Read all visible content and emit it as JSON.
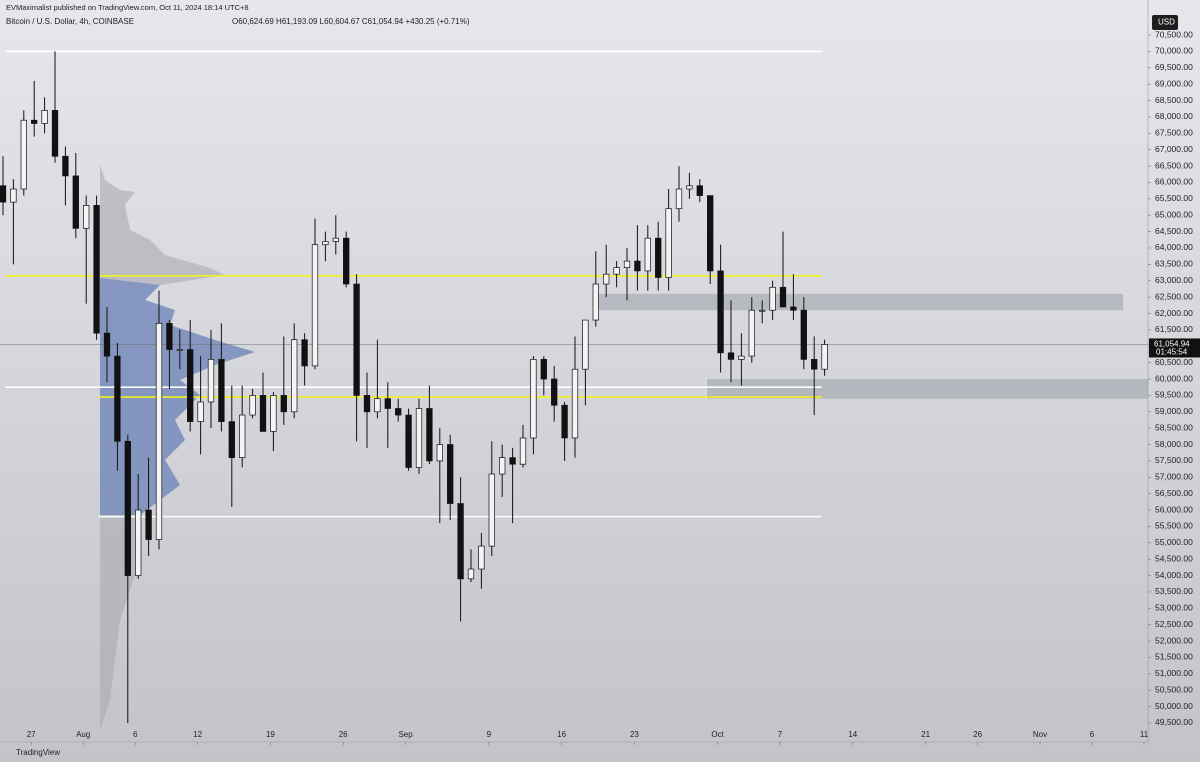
{
  "header": {
    "publisher": "EVMaximalist published on TradingView.com, Oct 11, 2024 18:14 UTC+8",
    "brand": "TradingView"
  },
  "chart_data": {
    "type": "candlestick",
    "title": "Bitcoin / U.S. Dollar, 4h, COINBASE",
    "ohlc_legend": "O60,624.69 H61,193.09 L60,604.67 C61,054.94 +430.25 (+0.71%)",
    "currency": "USD",
    "x": [
      "Jul 24",
      "Jul 25",
      "Jul 26",
      "Jul 27",
      "Jul 28",
      "Jul 29",
      "Jul 30",
      "Jul 31",
      "Aug 1",
      "Aug 2",
      "Aug 3",
      "Aug 4",
      "Aug 5",
      "Aug 6",
      "Aug 7",
      "Aug 8",
      "Aug 9",
      "Aug 10",
      "Aug 11",
      "Aug 12",
      "Aug 13",
      "Aug 14",
      "Aug 15",
      "Aug 16",
      "Aug 17",
      "Aug 18",
      "Aug 19",
      "Aug 20",
      "Aug 21",
      "Aug 22",
      "Aug 23",
      "Aug 24",
      "Aug 25",
      "Aug 26",
      "Aug 27",
      "Aug 28",
      "Aug 29",
      "Aug 30",
      "Aug 31",
      "Sep 1",
      "Sep 2",
      "Sep 3",
      "Sep 4",
      "Sep 5",
      "Sep 6",
      "Sep 7",
      "Sep 8",
      "Sep 9",
      "Sep 10",
      "Sep 11",
      "Sep 12",
      "Sep 13",
      "Sep 14",
      "Sep 15",
      "Sep 16",
      "Sep 17",
      "Sep 18",
      "Sep 19",
      "Sep 20",
      "Sep 21",
      "Sep 22",
      "Sep 23",
      "Sep 24",
      "Sep 25",
      "Sep 26",
      "Sep 27",
      "Sep 28",
      "Sep 29",
      "Sep 30",
      "Oct 1",
      "Oct 2",
      "Oct 3",
      "Oct 4",
      "Oct 5",
      "Oct 6",
      "Oct 7",
      "Oct 8",
      "Oct 9",
      "Oct 10",
      "Oct 11"
    ],
    "open": [
      65900,
      65400,
      65800,
      67900,
      67800,
      68200,
      66800,
      66200,
      64600,
      65300,
      61400,
      60700,
      58100,
      54000,
      56000,
      55100,
      61700,
      60900,
      60900,
      58700,
      59300,
      60600,
      58700,
      57600,
      58900,
      59500,
      58400,
      59500,
      59000,
      61200,
      60400,
      64100,
      64200,
      64300,
      62900,
      59500,
      59000,
      59400,
      59100,
      58900,
      57300,
      59100,
      57500,
      58000,
      56200,
      53900,
      54200,
      54900,
      57100,
      57600,
      57400,
      58200,
      60600,
      60000,
      59200,
      58200,
      60300,
      61800,
      62900,
      63200,
      63400,
      63600,
      63300,
      64300,
      63100,
      65200,
      65800,
      65900,
      65600,
      63300,
      60800,
      60600,
      60700,
      62100,
      62100,
      62800,
      62200,
      62100,
      60600,
      60300
    ],
    "high": [
      66800,
      66100,
      68200,
      69100,
      68600,
      70000,
      67100,
      66900,
      65600,
      65600,
      62200,
      61100,
      58300,
      57100,
      57600,
      62700,
      61800,
      61500,
      61800,
      60700,
      61500,
      61700,
      59800,
      59800,
      59700,
      60200,
      59600,
      61300,
      61700,
      61400,
      64900,
      64500,
      65000,
      64500,
      63200,
      60200,
      61200,
      59900,
      59400,
      59100,
      59400,
      59800,
      58500,
      58300,
      57000,
      54800,
      55300,
      58100,
      58000,
      57900,
      58600,
      60700,
      60700,
      60400,
      59300,
      61300,
      61800,
      63900,
      64100,
      63600,
      64000,
      64700,
      64700,
      64800,
      65800,
      66500,
      66300,
      66100,
      65600,
      64100,
      62400,
      61400,
      62500,
      62400,
      63000,
      64500,
      63200,
      62500,
      61300,
      61200
    ],
    "low": [
      65000,
      63500,
      65600,
      67400,
      67500,
      66600,
      65300,
      64300,
      62300,
      61200,
      59900,
      57200,
      49500,
      53900,
      54600,
      54800,
      59700,
      60300,
      58400,
      57700,
      58500,
      58400,
      56100,
      57300,
      58800,
      58400,
      57800,
      58600,
      58800,
      59800,
      60300,
      63600,
      63800,
      62800,
      58100,
      57900,
      58800,
      57900,
      58700,
      57200,
      57100,
      57400,
      55600,
      55700,
      52600,
      53800,
      53600,
      54600,
      56400,
      55600,
      57300,
      57700,
      59500,
      58700,
      57500,
      57600,
      59200,
      61600,
      62500,
      62800,
      62400,
      62700,
      62700,
      62700,
      62700,
      64800,
      65500,
      65400,
      62900,
      60200,
      59900,
      59800,
      60500,
      61700,
      61800,
      62200,
      61800,
      60300,
      58900,
      60100
    ],
    "close": [
      65400,
      65800,
      67900,
      67800,
      68200,
      66800,
      66200,
      64600,
      65300,
      61400,
      60700,
      58100,
      54000,
      56000,
      55100,
      61700,
      60900,
      60900,
      58700,
      59300,
      60600,
      58700,
      57600,
      58900,
      59500,
      58400,
      59500,
      59000,
      61200,
      60400,
      64100,
      64200,
      64300,
      62900,
      59500,
      59000,
      59400,
      59100,
      58900,
      57300,
      59100,
      57500,
      58000,
      56200,
      53900,
      54200,
      54900,
      57100,
      57600,
      57400,
      58200,
      60600,
      60000,
      59200,
      58200,
      60300,
      61800,
      62900,
      63200,
      63400,
      63600,
      63300,
      64300,
      63100,
      65200,
      65800,
      65900,
      65600,
      63300,
      60800,
      60600,
      60700,
      62100,
      62100,
      62800,
      62200,
      62100,
      60600,
      60300,
      61054.94
    ],
    "xlim": [
      "Jul 24",
      "Nov 11"
    ],
    "xticks": [
      {
        "value": "Jul 27",
        "label": "27"
      },
      {
        "value": "Aug 1",
        "label": "Aug"
      },
      {
        "value": "Aug 6",
        "label": "6"
      },
      {
        "value": "Aug 12",
        "label": "12"
      },
      {
        "value": "Aug 19",
        "label": "19"
      },
      {
        "value": "Aug 26",
        "label": "26"
      },
      {
        "value": "Sep 1",
        "label": "Sep"
      },
      {
        "value": "Sep 9",
        "label": "9"
      },
      {
        "value": "Sep 16",
        "label": "16"
      },
      {
        "value": "Sep 23",
        "label": "23"
      },
      {
        "value": "Oct 1",
        "label": "Oct"
      },
      {
        "value": "Oct 7",
        "label": "7"
      },
      {
        "value": "Oct 14",
        "label": "14"
      },
      {
        "value": "Oct 21",
        "label": "21"
      },
      {
        "value": "Oct 26",
        "label": "26"
      },
      {
        "value": "Nov 1",
        "label": "Nov"
      },
      {
        "value": "Nov 6",
        "label": "6"
      },
      {
        "value": "Nov 11",
        "label": "11"
      }
    ],
    "ylim": [
      48920,
      71570
    ],
    "yticks": [
      {
        "value": 49500,
        "label": "49,500.00"
      },
      {
        "value": 50000,
        "label": "50,000.00"
      },
      {
        "value": 50500,
        "label": "50,500.00"
      },
      {
        "value": 51000,
        "label": "51,000.00"
      },
      {
        "value": 51500,
        "label": "51,500.00"
      },
      {
        "value": 52000,
        "label": "52,000.00"
      },
      {
        "value": 52500,
        "label": "52,500.00"
      },
      {
        "value": 53000,
        "label": "53,000.00"
      },
      {
        "value": 53500,
        "label": "53,500.00"
      },
      {
        "value": 54000,
        "label": "54,000.00"
      },
      {
        "value": 54500,
        "label": "54,500.00"
      },
      {
        "value": 55000,
        "label": "55,000.00"
      },
      {
        "value": 55500,
        "label": "55,500.00"
      },
      {
        "value": 56000,
        "label": "56,000.00"
      },
      {
        "value": 56500,
        "label": "56,500.00"
      },
      {
        "value": 57000,
        "label": "57,000.00"
      },
      {
        "value": 57500,
        "label": "57,500.00"
      },
      {
        "value": 58000,
        "label": "58,000.00"
      },
      {
        "value": 58500,
        "label": "58,500.00"
      },
      {
        "value": 59000,
        "label": "59,000.00"
      },
      {
        "value": 59500,
        "label": "59,500.00"
      },
      {
        "value": 60000,
        "label": "60,000.00"
      },
      {
        "value": 60500,
        "label": "60,500.00"
      },
      {
        "value": 61000,
        "label": "61,000.00"
      },
      {
        "value": 61500,
        "label": "61,500.00"
      },
      {
        "value": 62000,
        "label": "62,000.00"
      },
      {
        "value": 62500,
        "label": "62,500.00"
      },
      {
        "value": 63000,
        "label": "63,000.00"
      },
      {
        "value": 63500,
        "label": "63,500.00"
      },
      {
        "value": 64000,
        "label": "64,000.00"
      },
      {
        "value": 64500,
        "label": "64,500.00"
      },
      {
        "value": 65000,
        "label": "65,000.00"
      },
      {
        "value": 65500,
        "label": "65,500.00"
      },
      {
        "value": 66000,
        "label": "66,000.00"
      },
      {
        "value": 66500,
        "label": "66,500.00"
      },
      {
        "value": 67000,
        "label": "67,000.00"
      },
      {
        "value": 67500,
        "label": "67,500.00"
      },
      {
        "value": 68000,
        "label": "68,000.00"
      },
      {
        "value": 68500,
        "label": "68,500.00"
      },
      {
        "value": 69000,
        "label": "69,000.00"
      },
      {
        "value": 69500,
        "label": "69,500.00"
      },
      {
        "value": 70000,
        "label": "70,000.00"
      },
      {
        "value": 70500,
        "label": "70,500.00"
      }
    ],
    "levels": [
      {
        "value": 70000,
        "color": "#ffffff",
        "from": "Jul 24",
        "to": "Oct 11"
      },
      {
        "value": 63150,
        "color": "#f2f21a",
        "from": "Jul 24",
        "to": "Oct 11"
      },
      {
        "value": 59750,
        "color": "#ffffff",
        "from": "Jul 24",
        "to": "Oct 11"
      },
      {
        "value": 59450,
        "color": "#f2f21a",
        "from": "Aug 2",
        "to": "Oct 11"
      },
      {
        "value": 55800,
        "color": "#ffffff",
        "from": "Aug 2",
        "to": "Oct 11"
      }
    ],
    "zones": [
      {
        "low": 62100,
        "high": 62600,
        "from": "Sep 19",
        "to": "Nov 9"
      },
      {
        "low": 59400,
        "high": 60000,
        "from": "Sep 30",
        "to": "Nov 12"
      }
    ],
    "last_price": 61054.94,
    "last_price_label": "61,054.94",
    "countdown": "01:45:54"
  }
}
